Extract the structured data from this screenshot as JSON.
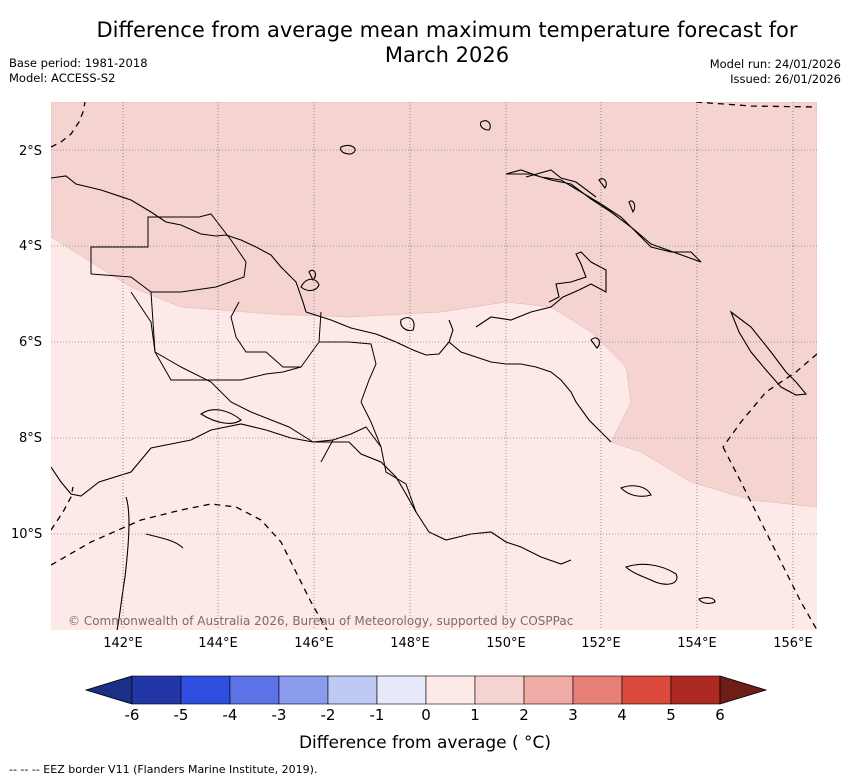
{
  "title": "Difference from average mean maximum temperature forecast for March 2026",
  "base_period": "Base period: 1981-2018",
  "model": "Model: ACCESS-S2",
  "model_run": "Model run: 24/01/2026",
  "issued": "Issued: 26/01/2026",
  "copyright": "© Commonwealth of Australia 2026, Bureau of Meteorology, supported by COSPPac",
  "latitudes": [
    "2°S",
    "4°S",
    "6°S",
    "8°S",
    "10°S"
  ],
  "longitudes": [
    "142°E",
    "144°E",
    "146°E",
    "148°E",
    "150°E",
    "152°E",
    "154°E",
    "156°E"
  ],
  "map": {
    "region": "Papua New Guinea",
    "lon_range": [
      140.5,
      156.5
    ],
    "lat_range": [
      -12,
      -1
    ],
    "anomaly_zones": [
      {
        "label": "1 to 2",
        "color": "#f5d3d1",
        "area": "north and east"
      },
      {
        "label": "0 to 1",
        "color": "#fdeae8",
        "area": "south and west"
      }
    ],
    "colors": {
      "land_border": "#000000",
      "grid": "#555555",
      "eez": "#000000"
    }
  },
  "colorbar": {
    "ticks": [
      "-6",
      "-5",
      "-4",
      "-3",
      "-2",
      "-1",
      "0",
      "1",
      "2",
      "3",
      "4",
      "5",
      "6"
    ],
    "colors": [
      "#2236a8",
      "#2f4ee0",
      "#5c73e8",
      "#8a9bed",
      "#c0c8f4",
      "#e6eafb",
      "#fdeae8",
      "#f5d3d1",
      "#efaba6",
      "#e77f77",
      "#dc4a3e",
      "#ad2a22"
    ],
    "under_color": "#1b2f86",
    "over_color": "#6f1e17",
    "label": "Difference from average ( °C)"
  },
  "eez_legend": "--  --  -- EEZ border V11 (Flanders Marine Institute, 2019)."
}
